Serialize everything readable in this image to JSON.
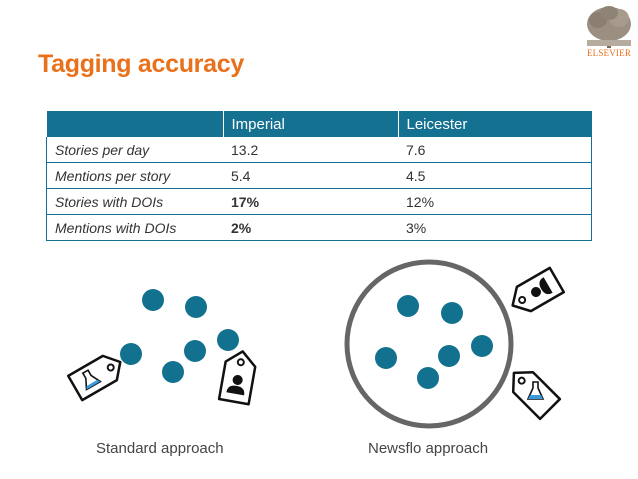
{
  "title": "Tagging accuracy",
  "logo": {
    "text": "ELSEVIER",
    "icon": "tree-icon"
  },
  "table": {
    "headers": [
      "",
      "Imperial",
      "Leicester"
    ],
    "rows": [
      {
        "label": "Stories per day",
        "imperial": "13.2",
        "leicester": "7.6"
      },
      {
        "label": "Mentions per story",
        "imperial": "5.4",
        "leicester": "4.5"
      },
      {
        "label": "Stories with DOIs",
        "imperial": "17%",
        "leicester": "12%"
      },
      {
        "label": "Mentions with DOIs",
        "imperial": "2%",
        "leicester": "3%"
      }
    ]
  },
  "captions": {
    "left": "Standard approach",
    "right": "Newsflo approach"
  },
  "colors": {
    "accent": "#e9711c",
    "teal": "#157192",
    "dot": "#12718f",
    "ring": "#666666"
  }
}
